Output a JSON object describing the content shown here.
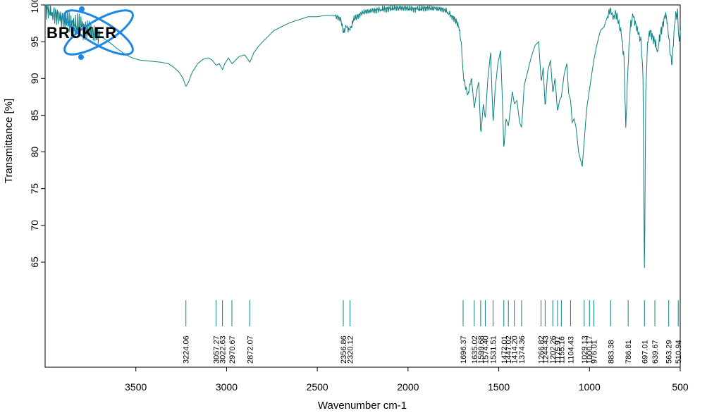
{
  "brand": {
    "name": "BRUKER",
    "colors": {
      "logo_blue": "#1e88e5",
      "logo_text": "#000000"
    }
  },
  "colors": {
    "spectrum": "#0a8080",
    "axis": "#000000",
    "background": "#ffffff"
  },
  "chart_data": {
    "type": "line",
    "title": "",
    "xlabel": "Wavenumber cm-1",
    "ylabel": "Transmittance [%]",
    "xlim": [
      4000,
      500
    ],
    "x_reversed": true,
    "ylim": [
      59,
      100
    ],
    "grid": false,
    "legend": "none",
    "x_ticks": [
      3500,
      3000,
      2500,
      2000,
      1500,
      1000,
      500
    ],
    "y_ticks": [
      65,
      70,
      75,
      80,
      85,
      90,
      95,
      100
    ],
    "series": [
      {
        "x": [
          4000,
          3960,
          3920,
          3880,
          3840,
          3800,
          3760,
          3720,
          3680,
          3640,
          3600,
          3560,
          3520,
          3480,
          3440,
          3400,
          3360,
          3320,
          3290,
          3260,
          3240,
          3224,
          3210,
          3190,
          3160,
          3130,
          3100,
          3080,
          3057,
          3040,
          3022,
          3010,
          2990,
          2970,
          2950,
          2930,
          2900,
          2872,
          2850,
          2820,
          2780,
          2740,
          2700,
          2650,
          2600,
          2550,
          2500,
          2450,
          2400,
          2370,
          2356,
          2340,
          2320,
          2300,
          2250,
          2200,
          2150,
          2100,
          2050,
          2000,
          1950,
          1900,
          1850,
          1800,
          1780,
          1760,
          1740,
          1720,
          1705,
          1696,
          1685,
          1670,
          1650,
          1635,
          1620,
          1610,
          1599,
          1590,
          1585,
          1574,
          1560,
          1545,
          1531,
          1520,
          1505,
          1490,
          1480,
          1472,
          1460,
          1447,
          1435,
          1425,
          1414,
          1400,
          1385,
          1374,
          1360,
          1340,
          1320,
          1300,
          1280,
          1266,
          1255,
          1244,
          1230,
          1215,
          1202,
          1190,
          1176,
          1165,
          1155,
          1140,
          1125,
          1115,
          1104,
          1095,
          1085,
          1075,
          1060,
          1040,
          1029,
          1015,
          1000,
          985,
          976,
          960,
          940,
          920,
          900,
          883,
          870,
          855,
          840,
          825,
          810,
          800,
          787,
          775,
          760,
          745,
          730,
          715,
          705,
          697,
          690,
          680,
          665,
          650,
          640,
          625,
          610,
          600,
          590,
          580,
          570,
          563,
          555,
          545,
          535,
          525,
          520,
          515,
          511,
          505,
          500
        ],
        "y": [
          99.8,
          99.0,
          98.2,
          97.8,
          97.2,
          97.0,
          96.5,
          96.0,
          95.5,
          94.8,
          94.0,
          93.3,
          92.8,
          92.5,
          92.4,
          92.3,
          92.2,
          92.0,
          91.5,
          90.8,
          90.0,
          88.9,
          89.5,
          90.8,
          92.0,
          92.6,
          92.8,
          92.5,
          91.8,
          92.0,
          91.2,
          92.0,
          92.8,
          92.0,
          92.5,
          93.0,
          93.2,
          92.2,
          93.5,
          94.5,
          95.5,
          96.5,
          97.0,
          97.6,
          98.0,
          98.4,
          98.4,
          98.6,
          98.5,
          98.0,
          96.2,
          97.0,
          96.5,
          98.0,
          99.0,
          99.2,
          99.4,
          99.5,
          99.6,
          99.5,
          99.4,
          99.6,
          99.5,
          99.4,
          99.0,
          98.5,
          98.0,
          97.0,
          94.5,
          90.5,
          89.0,
          87.8,
          90.0,
          86.0,
          88.5,
          89.5,
          82.3,
          85.0,
          86.5,
          84.5,
          90.0,
          93.5,
          83.8,
          88.5,
          92.0,
          93.8,
          87.0,
          80.3,
          84.5,
          83.5,
          86.0,
          88.2,
          86.5,
          87.0,
          84.0,
          83.3,
          89.0,
          91.0,
          93.0,
          94.5,
          95.0,
          89.5,
          91.5,
          86.0,
          91.0,
          92.5,
          88.0,
          90.0,
          85.5,
          87.0,
          87.5,
          90.5,
          92.0,
          88.0,
          87.0,
          84.0,
          84.5,
          83.5,
          80.0,
          78.0,
          81.5,
          86.0,
          88.5,
          91.0,
          92.5,
          94.5,
          96.5,
          97.0,
          98.5,
          99.5,
          98.0,
          99.0,
          97.5,
          96.0,
          93.0,
          83.3,
          92.0,
          97.0,
          98.5,
          97.5,
          96.0,
          95.0,
          90.0,
          62.5,
          88.0,
          95.0,
          96.5,
          95.5,
          95.0,
          93.8,
          96.0,
          97.0,
          98.0,
          99.0,
          97.5,
          95.5,
          93.3,
          92.0,
          96.0,
          99.0,
          98.0,
          99.5,
          96.5,
          95.0,
          96.5
        ],
        "noise_regions": [
          [
            3700,
            4000,
            1.8
          ],
          [
            1650,
            2400,
            0.5
          ],
          [
            500,
            900,
            0.8
          ]
        ]
      }
    ],
    "peaks": [
      3224.06,
      3057.27,
      3022.63,
      2970.67,
      2872.07,
      2356.86,
      2320.12,
      1696.37,
      1635.02,
      1599.68,
      1574.4,
      1531.51,
      1472.01,
      1447.02,
      1414.2,
      1374.36,
      1266.82,
      1244.43,
      1202.26,
      1175.97,
      1155.16,
      1104.43,
      1029.13,
      1000.17,
      976.01,
      883.38,
      786.81,
      697.01,
      639.67,
      563.29,
      510.94
    ],
    "peak_labels": [
      "3224.06",
      "3057.27",
      "3022.63",
      "2970.67",
      "2872.07",
      "2356.86",
      "2320.12",
      "1696.37",
      "1635.02",
      "1599.68",
      "1574.40",
      "1531.51",
      "1472.01",
      "1447.02",
      "1414.20",
      "1374.36",
      "1266.82",
      "1244.43",
      "1202.26",
      "1175.97",
      "1155.16",
      "1104.43",
      "1029.13",
      "1000.17",
      "976.01",
      "883.38",
      "786.81",
      "697.01",
      "639.67",
      "563.29",
      "510.94"
    ]
  }
}
